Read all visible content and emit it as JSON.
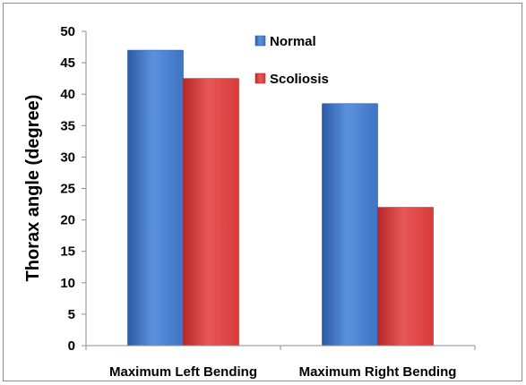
{
  "chart_data": {
    "type": "bar",
    "title": "",
    "xlabel": "",
    "ylabel": "Thorax angle (degree)",
    "ylim": [
      0,
      50
    ],
    "ytick_step": 5,
    "grid": false,
    "legend_position": "top-center",
    "categories": [
      "Maximum Left Bending",
      "Maximum Right Bending"
    ],
    "series": [
      {
        "name": "Normal",
        "values": [
          47,
          38.5
        ],
        "color": "#3f73c4",
        "color_light": "#5b92dd",
        "color_dark": "#2d5aa6"
      },
      {
        "name": "Scoliosis",
        "values": [
          42.5,
          22
        ],
        "color": "#d93a3a",
        "color_light": "#e85757",
        "color_dark": "#b72727"
      }
    ]
  }
}
